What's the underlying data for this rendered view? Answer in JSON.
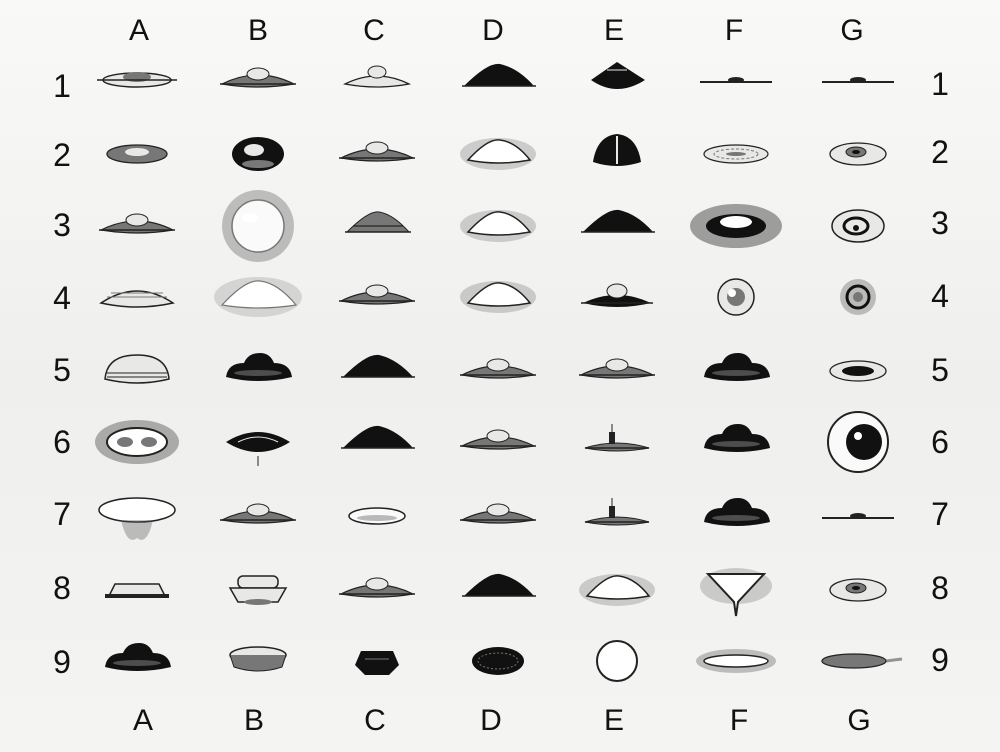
{
  "columns": [
    "A",
    "B",
    "C",
    "D",
    "E",
    "F",
    "G"
  ],
  "rows": [
    "1",
    "2",
    "3",
    "4",
    "5",
    "6",
    "7",
    "8",
    "9"
  ],
  "cell_colors": {
    "ink": "#222222",
    "dark": "#111111",
    "mid": "#777777",
    "light": "#e8e8e6",
    "halo": "#555555"
  },
  "shapes": {
    "A1": "disc-thin",
    "B1": "saucer-dome",
    "C1": "saucer-dome-light",
    "D1": "hat-dark",
    "E1": "cone-dark",
    "F1": "line-flat",
    "G1": "line-flat",
    "A2": "ellipse",
    "B2": "sphere-dark",
    "C2": "saucer-dome",
    "D2": "hat-glow",
    "E2": "bell-dark",
    "F2": "disc-rings",
    "G2": "ellipse-eye",
    "A3": "saucer-dome",
    "B3": "sphere-halo",
    "C3": "hat-striped",
    "D3": "hat-glow",
    "E3": "hat-dark",
    "F3": "cloud-dark",
    "G3": "ring-eye",
    "A4": "saucer-striped",
    "B4": "hat-glow-faint",
    "C4": "saucer-dome",
    "D4": "hat-glow",
    "E4": "saucer-dome-dark",
    "F4": "sphere-small",
    "G4": "sphere-ring",
    "A5": "saucer-rings",
    "B5": "dome-dark",
    "C5": "hat-dark",
    "D5": "saucer-dome",
    "E5": "saucer-dome",
    "F5": "dome-dark",
    "G5": "ellipse-eye-dark",
    "A6": "cloud-ring",
    "B6": "lens-dark",
    "C6": "hat-dark",
    "D6": "saucer-dome",
    "E6": "saucer-antenna",
    "F6": "dome-dark",
    "G6": "eye-large",
    "A7": "disc-smoke",
    "B7": "saucer-dome",
    "C7": "ellipse-light",
    "D7": "saucer-dome",
    "E7": "saucer-antenna",
    "F7": "dome-dark",
    "G7": "line-flat",
    "A8": "cup-flat",
    "B8": "hat-stacked",
    "C8": "saucer-dome",
    "D8": "hat-dark",
    "E8": "hat-glow",
    "F8": "triangle-drop",
    "G8": "ellipse-eye",
    "A9": "dome-dark",
    "B9": "dish-thick",
    "C9": "blob-dark",
    "D9": "ellipse-dark",
    "E9": "ring-circle",
    "F9": "ellipse-glow",
    "G9": "disc-tail"
  }
}
